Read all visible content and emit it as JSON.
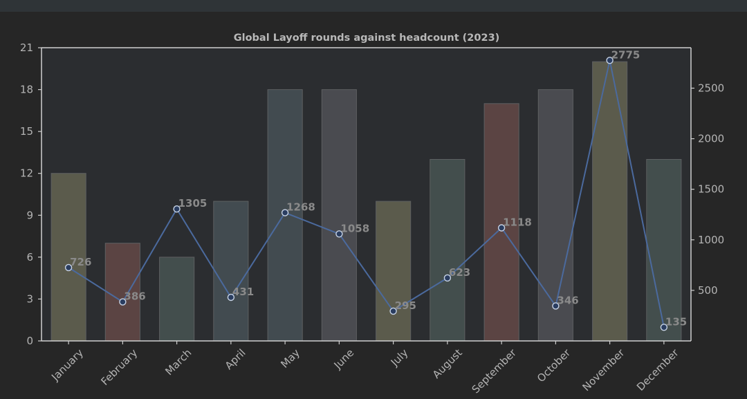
{
  "chart_data": {
    "type": "bar",
    "title": "Global Layoff rounds against headcount (2023)",
    "xlabel": "",
    "ylabel": "",
    "categories": [
      "January",
      "February",
      "March",
      "April",
      "May",
      "June",
      "July",
      "August",
      "September",
      "October",
      "November",
      "December"
    ],
    "series": [
      {
        "type": "bar",
        "axis": "left",
        "values": [
          12,
          7,
          6,
          10,
          18,
          18,
          10,
          13,
          17,
          18,
          20,
          13
        ],
        "colors": [
          "#5b5b4c",
          "#5b4443",
          "#434e4d",
          "#424b50",
          "#424b50",
          "#4a4b50",
          "#5b5b4c",
          "#434e4d",
          "#5b4443",
          "#4a4b50",
          "#5b5b4c",
          "#434e4d"
        ]
      },
      {
        "type": "line",
        "axis": "right",
        "values": [
          726,
          386,
          1305,
          431,
          1268,
          1058,
          295,
          623,
          1118,
          346,
          2775,
          135
        ],
        "color": "#4b6a9e",
        "marker_face": "#2a3d60",
        "marker_edge": "#c8d4e6"
      }
    ],
    "ylim_left": [
      0,
      21
    ],
    "yticks_left": [
      0,
      3,
      6,
      9,
      12,
      15,
      18,
      21
    ],
    "ylim_right": [
      0,
      2900
    ],
    "yticks_right": [
      500,
      1000,
      1500,
      2000,
      2500
    ],
    "grid": false,
    "legend": false
  }
}
